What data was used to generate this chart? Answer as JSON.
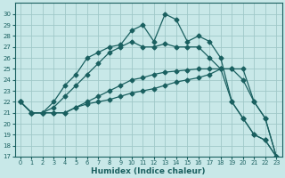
{
  "xlabel": "Humidex (Indice chaleur)",
  "ylabel": "",
  "bg_color": "#c8e8e8",
  "grid_color": "#a0c8c8",
  "line_color": "#1a6060",
  "x": [
    0,
    1,
    2,
    3,
    4,
    5,
    6,
    7,
    8,
    9,
    10,
    11,
    12,
    13,
    14,
    15,
    16,
    17,
    18,
    19,
    20,
    21,
    22,
    23
  ],
  "line1": [
    22,
    21,
    21,
    21,
    21,
    21.5,
    21.8,
    22,
    22.2,
    22.5,
    22.8,
    23,
    23.2,
    23.5,
    23.8,
    24,
    24.2,
    24.5,
    25,
    25,
    24,
    22,
    20.5,
    17
  ],
  "line2": [
    22,
    21,
    21,
    21,
    21,
    21.5,
    22,
    22.5,
    23,
    23.5,
    24,
    24.2,
    24.5,
    24.7,
    24.8,
    24.9,
    25,
    25,
    25,
    25,
    25,
    22,
    20.5,
    17
  ],
  "line3": [
    22,
    21,
    21,
    21.5,
    22.5,
    23.5,
    24.5,
    25.5,
    26.5,
    27,
    27.5,
    27,
    27,
    27.3,
    27,
    27,
    27,
    26,
    25,
    22,
    20.5,
    19,
    18.5,
    17
  ],
  "line4": [
    22,
    21,
    21,
    22,
    23.5,
    24.5,
    26,
    26.5,
    27,
    27.2,
    28.5,
    29,
    27.5,
    30,
    29.5,
    27.5,
    28,
    27.5,
    26,
    22,
    20.5,
    19,
    18.5,
    17
  ],
  "xlim": [
    -0.5,
    23.5
  ],
  "ylim": [
    17,
    31
  ],
  "yticks": [
    17,
    18,
    19,
    20,
    21,
    22,
    23,
    24,
    25,
    26,
    27,
    28,
    29,
    30
  ],
  "xticks": [
    0,
    1,
    2,
    3,
    4,
    5,
    6,
    7,
    8,
    9,
    10,
    11,
    12,
    13,
    14,
    15,
    16,
    17,
    18,
    19,
    20,
    21,
    22,
    23
  ]
}
